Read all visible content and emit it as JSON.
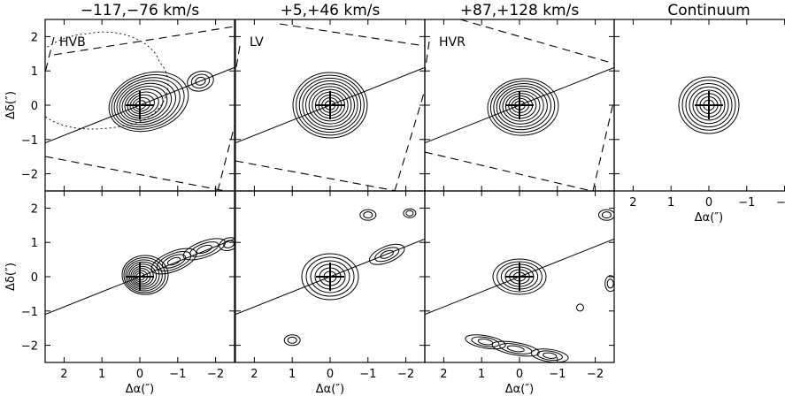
{
  "chart_data": {
    "type": "contour-grid",
    "columns": [
      {
        "title": "−117,−76 km/s",
        "tag": "HVB"
      },
      {
        "title": "+5,+46 km/s",
        "tag": "LV"
      },
      {
        "title": "+87,+128 km/s",
        "tag": "HVR"
      },
      {
        "title": "Continuum",
        "tag": ""
      }
    ],
    "xlabel": "Δα(″)",
    "ylabel": "Δδ(″)",
    "xlim": [
      2.5,
      -2.5
    ],
    "ylim": [
      -2.5,
      2.5
    ],
    "xticks": [
      2,
      1,
      0,
      -1,
      -2
    ],
    "yticks": [
      -2,
      -1,
      0,
      1,
      2
    ],
    "xtick_labels": [
      "2",
      "1",
      "0",
      "−1",
      "−2"
    ],
    "ytick_labels": [
      "−2",
      "−1",
      "0",
      "1",
      "2"
    ],
    "axis_line_slope": -0.44,
    "top_row": [
      {
        "source": "HVB",
        "center": [
          0,
          0
        ],
        "contours": 11,
        "extension": {
          "dx": -1.3,
          "dy": 0.55
        }
      },
      {
        "source": "LV",
        "center": [
          0,
          0
        ],
        "contours": 11,
        "extension": {
          "dx": 0,
          "dy": 0
        }
      },
      {
        "source": "HVR",
        "center": [
          0,
          0
        ],
        "contours": 10,
        "extension": {
          "dx": -0.4,
          "dy": 0.1
        }
      },
      {
        "source": "Continuum",
        "center": [
          0,
          0
        ],
        "contours": 8,
        "extension": {
          "dx": 0,
          "dy": 0
        }
      }
    ],
    "bottom_row": [
      {
        "source": "HVB",
        "center": [
          0,
          0
        ],
        "contours": 9,
        "jet": [
          [
            -0.8,
            0.4
          ],
          [
            -1.5,
            0.75
          ],
          [
            -2.3,
            0.95
          ]
        ]
      },
      {
        "source": "LV",
        "center": [
          0,
          0
        ],
        "contours": 6,
        "jet": [
          [
            -1.5,
            0.65
          ]
        ]
      },
      {
        "source": "HVR",
        "center": [
          0,
          0
        ],
        "contours": 6,
        "jet": [
          [
            0.9,
            -1.9
          ],
          [
            0.2,
            -2.05
          ],
          [
            -0.6,
            -2.3
          ]
        ]
      }
    ]
  },
  "colors": {
    "ink": "#000000",
    "background": "#ffffff"
  }
}
